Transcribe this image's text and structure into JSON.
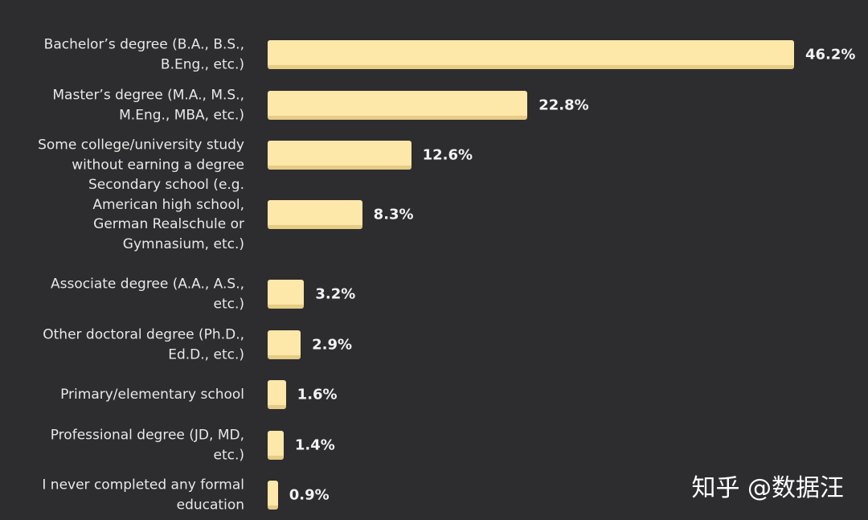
{
  "chart_data": {
    "type": "bar",
    "orientation": "horizontal",
    "color": "#fde7a9",
    "categories": [
      "Bachelor’s degree (B.A., B.S., B.Eng., etc.)",
      "Master’s degree (M.A., M.S., M.Eng., MBA, etc.)",
      "Some college/university study without earning a degree",
      "Secondary school (e.g. American high school, German Realschule or Gymnasium, etc.)",
      "Associate degree (A.A., A.S., etc.)",
      "Other doctoral degree (Ph.D., Ed.D., etc.)",
      "Primary/elementary school",
      "Professional degree (JD, MD, etc.)",
      "I never completed any formal education"
    ],
    "values": [
      46.2,
      22.8,
      12.6,
      8.3,
      3.2,
      2.9,
      1.6,
      1.4,
      0.9
    ],
    "value_labels": [
      "46.2%",
      "22.8%",
      "12.6%",
      "8.3%",
      "3.2%",
      "2.9%",
      "1.6%",
      "1.4%",
      "0.9%"
    ],
    "watermark": "知乎 @数据汪"
  }
}
